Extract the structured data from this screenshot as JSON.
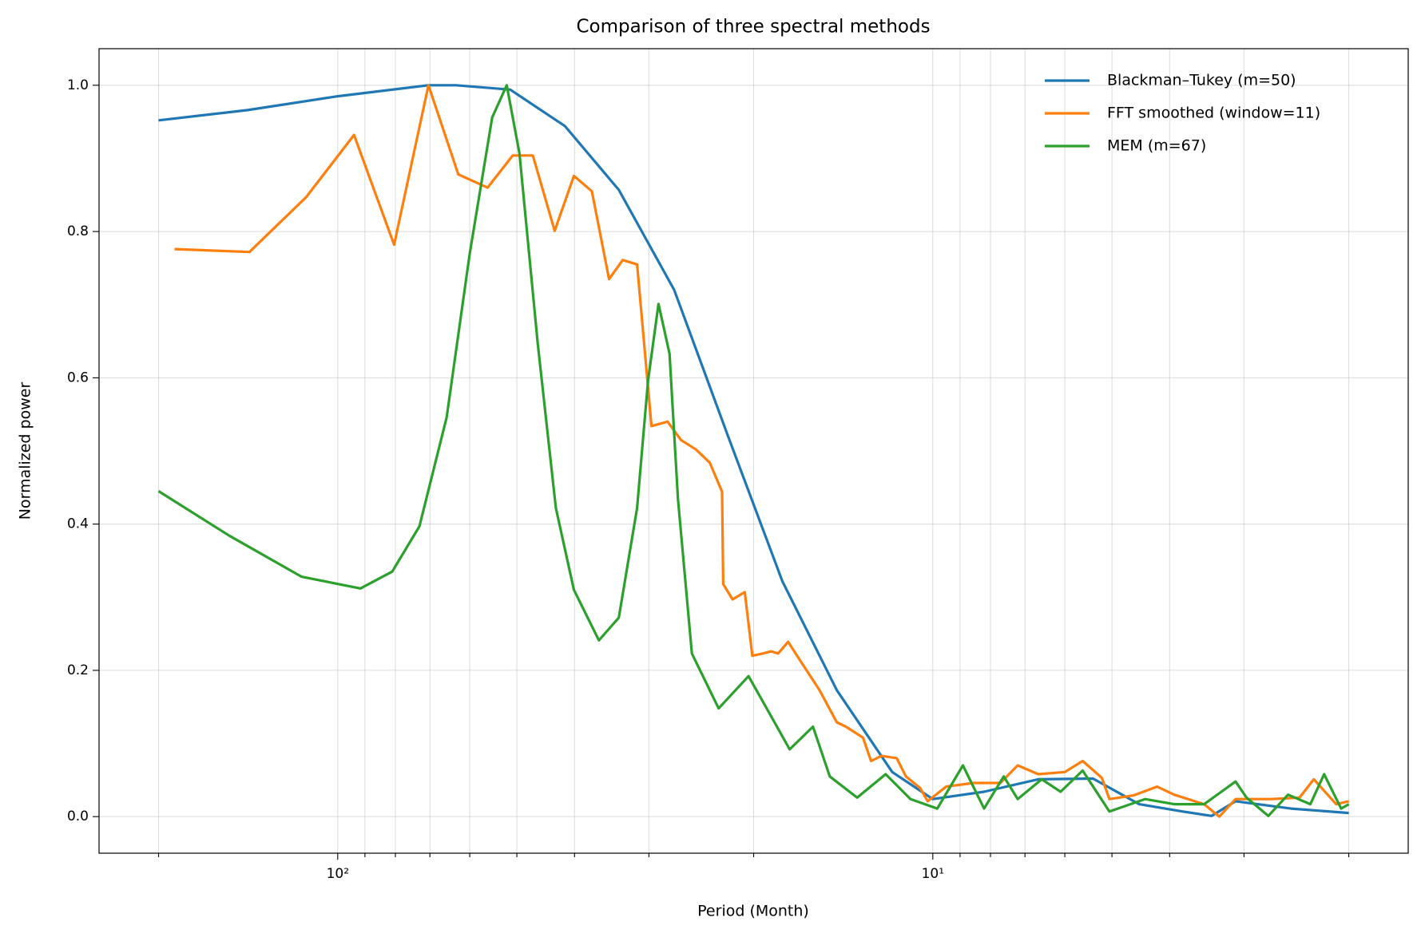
{
  "chart_data": {
    "type": "line",
    "title": "Comparison of three spectral methods",
    "x_label": "Period (Month)",
    "y_label": "Normalized power",
    "xscale": "log",
    "grid": true,
    "legend": "upper right",
    "xlim": [
      251.8,
      1.589
    ],
    "ylim": [
      -0.05,
      1.05
    ],
    "xticks": [
      {
        "value": 100,
        "label": "10²"
      },
      {
        "value": 10,
        "label": "10¹"
      }
    ],
    "xminorticks": [
      200,
      90,
      80,
      70,
      60,
      50,
      40,
      30,
      20,
      9,
      8,
      7,
      6,
      5,
      4,
      3,
      2
    ],
    "yticks": [
      {
        "value": 0,
        "label": "0.0"
      },
      0.2,
      0.4,
      0.6,
      0.8,
      {
        "value": 1,
        "label": "1.0"
      }
    ],
    "series": [
      {
        "name": "Blackman–Tukey (m=50)",
        "color": "#1f77b4",
        "x": [
          200,
          142,
          100,
          70.4,
          63.3,
          51.3,
          41.5,
          33.7,
          27.2,
          22.1,
          17.9,
          14.5,
          11.7,
          10,
          8.2,
          6.65,
          5.38,
          4.5,
          3.8,
          3.4,
          3.1,
          2.5,
          2
        ],
        "values": [
          0.952,
          0.966,
          0.985,
          1.0,
          1.0,
          0.994,
          0.944,
          0.857,
          0.72,
          0.521,
          0.322,
          0.173,
          0.061,
          0.024,
          0.034,
          0.051,
          0.052,
          0.017,
          0.007,
          0.001,
          0.021,
          0.011,
          0.005
        ]
      },
      {
        "name": "FFT smoothed (window=11)",
        "color": "#ff7f0e",
        "x": [
          188,
          140.7,
          113,
          93.9,
          80.4,
          70.4,
          62.7,
          56,
          50.8,
          47,
          43.2,
          40.1,
          37.4,
          35,
          33.2,
          31.4,
          29.7,
          27.9,
          26.5,
          25,
          23.7,
          22.6,
          22.5,
          21.7,
          20.7,
          20.1,
          19.3,
          18.7,
          18.2,
          17.5,
          16.6,
          15.5,
          14.5,
          14,
          13.1,
          12.7,
          12.2,
          11.5,
          11.1,
          10.5,
          10.2,
          9.5,
          8.54,
          7.7,
          7.2,
          6.65,
          6,
          5.6,
          5.2,
          5.05,
          4.6,
          4.2,
          3.93,
          3.5,
          3.3,
          3.1,
          2.7,
          2.42,
          2.29,
          2.1,
          2
        ],
        "values": [
          0.776,
          0.772,
          0.847,
          0.932,
          0.782,
          1.0,
          0.878,
          0.86,
          0.904,
          0.904,
          0.801,
          0.876,
          0.855,
          0.735,
          0.761,
          0.755,
          0.534,
          0.54,
          0.515,
          0.502,
          0.484,
          0.444,
          0.318,
          0.297,
          0.307,
          0.22,
          0.223,
          0.226,
          0.223,
          0.239,
          0.21,
          0.173,
          0.129,
          0.123,
          0.108,
          0.076,
          0.083,
          0.08,
          0.055,
          0.039,
          0.021,
          0.041,
          0.046,
          0.046,
          0.07,
          0.058,
          0.061,
          0.076,
          0.053,
          0.024,
          0.029,
          0.041,
          0.03,
          0.017,
          0,
          0.024,
          0.024,
          0.026,
          0.051,
          0.017,
          0.021
        ]
      },
      {
        "name": "MEM (m=67)",
        "color": "#2ca02c",
        "x": [
          200,
          152,
          115,
          91.6,
          81,
          72.9,
          65.6,
          60,
          55,
          52,
          49.5,
          46.1,
          43,
          40.1,
          36.4,
          33.7,
          31.4,
          30.1,
          28.9,
          27.7,
          26.8,
          25.4,
          22.9,
          20.4,
          19.2,
          17.4,
          15.9,
          14.9,
          13.4,
          12,
          10.9,
          9.83,
          8.9,
          8.2,
          7.6,
          7.2,
          6.56,
          6.1,
          5.6,
          5.05,
          4.4,
          3.93,
          3.5,
          3.1,
          2.97,
          2.73,
          2.53,
          2.32,
          2.2,
          2.06,
          2
        ],
        "values": [
          0.445,
          0.384,
          0.328,
          0.312,
          0.335,
          0.397,
          0.546,
          0.77,
          0.956,
          1.0,
          0.907,
          0.646,
          0.422,
          0.31,
          0.241,
          0.272,
          0.422,
          0.596,
          0.701,
          0.633,
          0.434,
          0.223,
          0.148,
          0.192,
          0.154,
          0.092,
          0.123,
          0.055,
          0.026,
          0.058,
          0.024,
          0.011,
          0.07,
          0.011,
          0.055,
          0.024,
          0.051,
          0.034,
          0.063,
          0.007,
          0.024,
          0.017,
          0.017,
          0.048,
          0.026,
          0.001,
          0.03,
          0.017,
          0.058,
          0.011,
          0.017
        ]
      }
    ]
  }
}
